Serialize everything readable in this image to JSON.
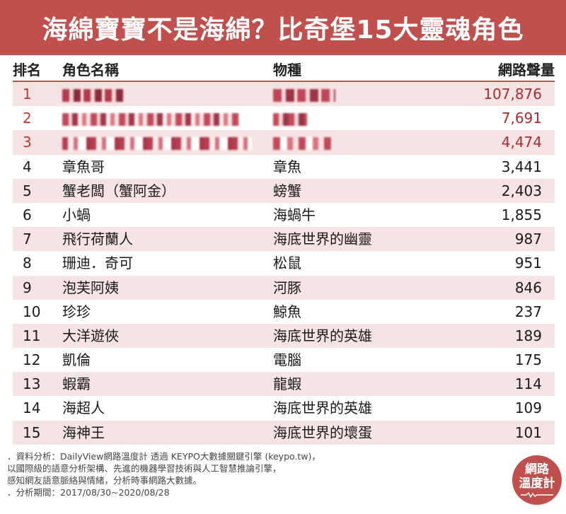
{
  "title": "海綿寶寶不是海綿？比奇堡15大靈魂角色",
  "table": {
    "headers": {
      "rank": "排名",
      "name": "角色名稱",
      "species": "物種",
      "volume": "網路聲量"
    },
    "rows": [
      {
        "rank": "1",
        "name": "",
        "species": "",
        "volume": "107,876",
        "redacted": true
      },
      {
        "rank": "2",
        "name": "",
        "species": "",
        "volume": "7,691",
        "redacted": true
      },
      {
        "rank": "3",
        "name": "",
        "species": "",
        "volume": "4,474",
        "redacted": true
      },
      {
        "rank": "4",
        "name": "章魚哥",
        "species": "章魚",
        "volume": "3,441"
      },
      {
        "rank": "5",
        "name": "蟹老闆（蟹阿金）",
        "species": "螃蟹",
        "volume": "2,403"
      },
      {
        "rank": "6",
        "name": "小蝸",
        "species": "海蝸牛",
        "volume": "1,855"
      },
      {
        "rank": "7",
        "name": "飛行荷蘭人",
        "species": "海底世界的幽靈",
        "volume": "987"
      },
      {
        "rank": "8",
        "name": "珊迪．奇可",
        "species": "松鼠",
        "volume": "951"
      },
      {
        "rank": "9",
        "name": "泡芙阿姨",
        "species": "河豚",
        "volume": "846"
      },
      {
        "rank": "10",
        "name": "珍珍",
        "species": "鯨魚",
        "volume": "237"
      },
      {
        "rank": "11",
        "name": "大洋遊俠",
        "species": "海底世界的英雄",
        "volume": "189"
      },
      {
        "rank": "12",
        "name": "凱倫",
        "species": "電腦",
        "volume": "175"
      },
      {
        "rank": "13",
        "name": "蝦霸",
        "species": "龍蝦",
        "volume": "114"
      },
      {
        "rank": "14",
        "name": "海超人",
        "species": "海底世界的英雄",
        "volume": "109"
      },
      {
        "rank": "15",
        "name": "海神王",
        "species": "海底世界的壞蛋",
        "volume": "101"
      }
    ]
  },
  "footer": {
    "lines": [
      "．資料分析：DailyView網路溫度計 透過 KEYPO大數據關鍵引擎 (keypo.tw)，",
      "   以國際級的語意分析架構、先進的機器學習技術與人工智慧推論引擎，",
      "   感知網友語意脈絡與情緒，分析時事網路大數據。",
      "．分析期間：2017/08/30~2020/08/28"
    ]
  },
  "badge": {
    "line1": "網路",
    "line2": "溫度計"
  },
  "colors": {
    "accent": "#c0504d",
    "top3_text": "#b02a30",
    "row_alt": "#f6e3e3"
  }
}
